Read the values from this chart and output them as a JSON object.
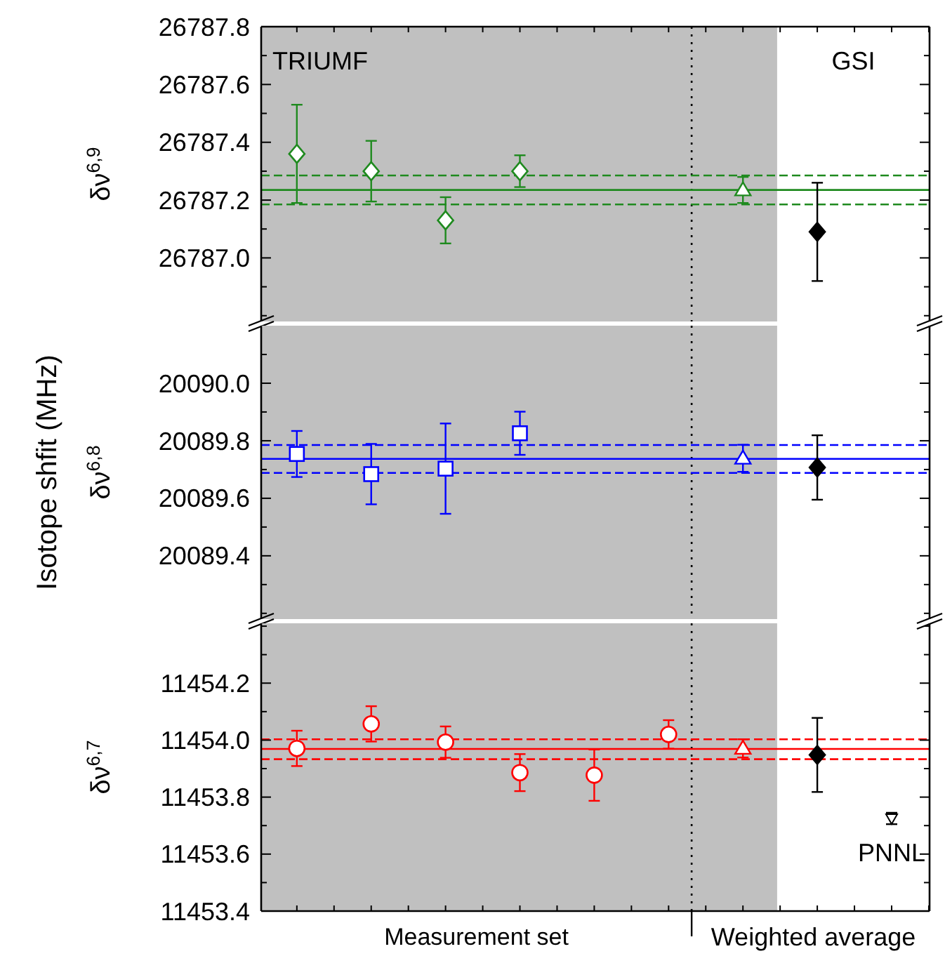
{
  "chart_data": [
    {
      "type": "scatter",
      "ylabel": "δν$^{6,9}$",
      "categories": [
        null,
        null,
        null,
        null,
        null,
        null,
        null,
        null,
        null
      ],
      "ylim": [
        26786.78,
        26787.8
      ],
      "tick_labels": "y",
      "yticks": [
        {
          "value": 26786.8,
          "label": null
        },
        {
          "value": 26786.9,
          "label": null
        },
        {
          "value": 26787.0,
          "label": "26787.0"
        },
        {
          "value": 26787.1,
          "label": null
        },
        {
          "value": 26787.2,
          "label": "26787.2"
        },
        {
          "value": 26787.3,
          "label": null
        },
        {
          "value": 26787.4,
          "label": "26787.4"
        },
        {
          "value": 26787.5,
          "label": null
        },
        {
          "value": 26787.6,
          "label": "26787.6"
        },
        {
          "value": 26787.7,
          "label": null
        },
        {
          "value": 26787.8,
          "label": "26787.8"
        }
      ],
      "series": [
        {
          "marker": "diamond",
          "color": "#1f8a1f",
          "values": [
            26787.36,
            26787.3,
            26787.13,
            26787.3,
            null,
            null,
            null,
            null,
            null
          ],
          "errors": [
            0.17,
            0.105,
            0.08,
            0.055,
            null,
            null,
            null,
            null,
            null
          ]
        },
        {
          "marker": "triangle",
          "color": "#1f8a1f",
          "values": [
            null,
            null,
            null,
            null,
            null,
            null,
            26787.235,
            null,
            null
          ],
          "errors": [
            null,
            null,
            null,
            null,
            null,
            null,
            0.045,
            null,
            null
          ]
        },
        {
          "marker": "diamond",
          "color": "#000000",
          "values": [
            null,
            null,
            null,
            null,
            null,
            null,
            null,
            26787.09,
            null
          ],
          "errors": [
            null,
            null,
            null,
            null,
            null,
            null,
            null,
            0.17,
            null
          ]
        }
      ],
      "ref_lines": [
        {
          "axis": "y",
          "value": 26787.235,
          "color": "#1f8a1f",
          "line_style": "solid"
        },
        {
          "axis": "y",
          "value": 26787.285,
          "color": "#1f8a1f",
          "line_style": "dashed"
        },
        {
          "axis": "y",
          "value": 26787.185,
          "color": "#1f8a1f",
          "line_style": "dashed"
        }
      ],
      "annotations": [
        "TRIUMF",
        "GSI"
      ]
    },
    {
      "type": "scatter",
      "ylabel": "δν$^{6,8}$",
      "categories": [
        null,
        null,
        null,
        null,
        null,
        null,
        null,
        null,
        null
      ],
      "ylim": [
        20089.18,
        20090.2
      ],
      "tick_labels": "y",
      "yticks": [
        {
          "value": 20089.2,
          "label": null
        },
        {
          "value": 20089.3,
          "label": null
        },
        {
          "value": 20089.4,
          "label": "20089.4"
        },
        {
          "value": 20089.5,
          "label": null
        },
        {
          "value": 20089.6,
          "label": "20089.6"
        },
        {
          "value": 20089.7,
          "label": null
        },
        {
          "value": 20089.8,
          "label": "20089.8"
        },
        {
          "value": 20089.9,
          "label": null
        },
        {
          "value": 20090.0,
          "label": "20090.0"
        },
        {
          "value": 20090.1,
          "label": null
        }
      ],
      "series": [
        {
          "marker": "square",
          "color": "#0000ff",
          "values": [
            20089.754,
            20089.684,
            20089.703,
            20089.826,
            null,
            null,
            null,
            null,
            null
          ],
          "errors": [
            0.08,
            0.105,
            0.157,
            0.075,
            null,
            null,
            null,
            null,
            null
          ]
        },
        {
          "marker": "triangle",
          "color": "#0000ff",
          "values": [
            null,
            null,
            null,
            null,
            null,
            null,
            20089.739,
            null,
            null
          ],
          "errors": [
            null,
            null,
            null,
            null,
            null,
            null,
            0.047,
            null,
            null
          ]
        },
        {
          "marker": "diamond",
          "color": "#000000",
          "values": [
            null,
            null,
            null,
            null,
            null,
            null,
            null,
            20089.707,
            null
          ],
          "errors": [
            null,
            null,
            null,
            null,
            null,
            null,
            null,
            0.112,
            null
          ]
        }
      ],
      "ref_lines": [
        {
          "axis": "y",
          "value": 20089.737,
          "color": "#0000ff",
          "line_style": "solid"
        },
        {
          "axis": "y",
          "value": 20089.785,
          "color": "#0000ff",
          "line_style": "dashed"
        },
        {
          "axis": "y",
          "value": 20089.688,
          "color": "#0000ff",
          "line_style": "dashed"
        }
      ],
      "annotations": [
        "Isotope shfit (MHz)"
      ]
    },
    {
      "type": "scatter",
      "ylabel": "δν$^{6,7}$",
      "xlabel": "Measurement set",
      "categories": [
        null,
        null,
        null,
        null,
        null,
        null,
        null,
        null,
        null
      ],
      "ylim": [
        11453.4,
        11454.41
      ],
      "tick_labels": "y",
      "yticks": [
        {
          "value": 11453.4,
          "label": "11453.4"
        },
        {
          "value": 11453.5,
          "label": null
        },
        {
          "value": 11453.6,
          "label": "11453.6"
        },
        {
          "value": 11453.7,
          "label": null
        },
        {
          "value": 11453.8,
          "label": "11453.8"
        },
        {
          "value": 11453.9,
          "label": null
        },
        {
          "value": 11454.0,
          "label": "11454.0"
        },
        {
          "value": 11454.1,
          "label": null
        },
        {
          "value": 11454.2,
          "label": "11454.2"
        },
        {
          "value": 11454.3,
          "label": null
        },
        {
          "value": 11454.4,
          "label": null
        }
      ],
      "series": [
        {
          "marker": "circle",
          "color": "#ff0000",
          "values": [
            11453.971,
            11454.057,
            11453.993,
            11453.886,
            11453.877,
            11454.02,
            null,
            null,
            null
          ],
          "errors": [
            0.062,
            0.062,
            0.055,
            0.065,
            0.09,
            0.05,
            null,
            null,
            null
          ]
        },
        {
          "marker": "triangle",
          "color": "#ff0000",
          "values": [
            null,
            null,
            null,
            null,
            null,
            null,
            11453.971,
            null,
            null
          ],
          "errors": [
            null,
            null,
            null,
            null,
            null,
            null,
            0.032,
            null,
            null
          ]
        },
        {
          "marker": "diamond",
          "color": "#000000",
          "values": [
            null,
            null,
            null,
            null,
            null,
            null,
            null,
            11453.948,
            null
          ],
          "errors": [
            null,
            null,
            null,
            null,
            null,
            null,
            null,
            0.13,
            null
          ]
        },
        {
          "marker": "triangle-down",
          "color": "#000000",
          "values": [
            null,
            null,
            null,
            null,
            null,
            null,
            null,
            null,
            11453.725
          ],
          "errors": [
            null,
            null,
            null,
            null,
            null,
            null,
            null,
            null,
            0.02
          ]
        }
      ],
      "ref_lines": [
        {
          "axis": "y",
          "value": 11453.969,
          "color": "#ff0000",
          "line_style": "solid"
        },
        {
          "axis": "y",
          "value": 11454.003,
          "color": "#ff0000",
          "line_style": "dashed"
        },
        {
          "axis": "y",
          "value": 11453.933,
          "color": "#ff0000",
          "line_style": "dashed"
        }
      ],
      "annotations": [
        "PNNL",
        "Weighted average"
      ]
    }
  ]
}
